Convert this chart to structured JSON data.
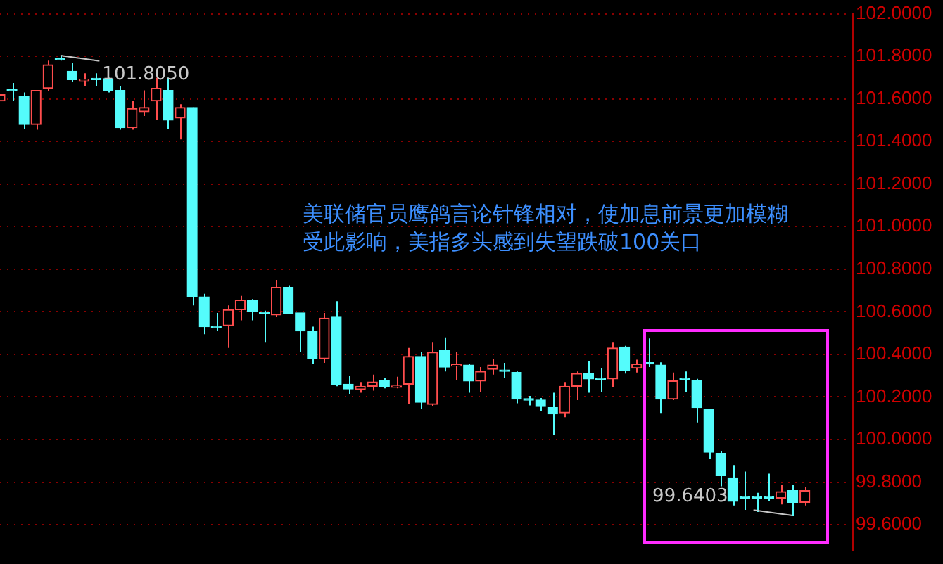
{
  "chart_data": {
    "type": "candlestick",
    "categories": [
      null,
      null,
      null,
      null,
      null,
      null,
      null,
      null,
      null,
      null,
      null,
      null,
      null,
      null,
      null,
      null,
      null,
      null,
      null,
      null,
      null,
      null,
      null,
      null,
      null,
      null,
      null,
      null,
      null,
      null,
      null,
      null,
      null,
      null,
      null,
      null,
      null,
      null,
      null,
      null,
      null,
      null,
      null,
      null,
      null,
      null,
      null,
      null,
      null,
      null,
      null,
      null,
      null,
      null,
      null,
      null,
      null,
      null,
      null,
      null,
      null,
      null,
      null,
      null,
      null,
      null,
      null,
      null,
      null,
      null,
      null,
      null
    ],
    "ohlc": [
      [
        101.59,
        101.62,
        101.59,
        101.62
      ],
      [
        101.645,
        101.675,
        101.59,
        101.64
      ],
      [
        101.61,
        101.63,
        101.46,
        101.48
      ],
      [
        101.48,
        101.64,
        101.455,
        101.64
      ],
      [
        101.65,
        101.78,
        101.635,
        101.76
      ],
      [
        101.79,
        101.805,
        101.78,
        101.785
      ],
      [
        101.73,
        101.77,
        101.68,
        101.69
      ],
      [
        101.685,
        101.72,
        101.66,
        101.69
      ],
      [
        101.695,
        101.72,
        101.66,
        101.69
      ],
      [
        101.695,
        101.7,
        101.63,
        101.64
      ],
      [
        101.64,
        101.66,
        101.455,
        101.465
      ],
      [
        101.465,
        101.59,
        101.455,
        101.555
      ],
      [
        101.54,
        101.64,
        101.52,
        101.56
      ],
      [
        101.59,
        101.7,
        101.5,
        101.65
      ],
      [
        101.64,
        101.7,
        101.46,
        101.5
      ],
      [
        101.51,
        101.575,
        101.41,
        101.56
      ],
      [
        101.56,
        101.56,
        100.63,
        100.67
      ],
      [
        100.67,
        100.685,
        100.495,
        100.53
      ],
      [
        100.53,
        100.595,
        100.51,
        100.525
      ],
      [
        100.535,
        100.63,
        100.43,
        100.61
      ],
      [
        100.61,
        100.675,
        100.56,
        100.655
      ],
      [
        100.655,
        100.66,
        100.56,
        100.6
      ],
      [
        100.595,
        100.605,
        100.455,
        100.59
      ],
      [
        100.585,
        100.75,
        100.575,
        100.715
      ],
      [
        100.715,
        100.725,
        100.59,
        100.59
      ],
      [
        100.595,
        100.595,
        100.41,
        100.51
      ],
      [
        100.51,
        100.53,
        100.355,
        100.38
      ],
      [
        100.38,
        100.595,
        100.36,
        100.57
      ],
      [
        100.575,
        100.65,
        100.25,
        100.26
      ],
      [
        100.26,
        100.3,
        100.215,
        100.2375
      ],
      [
        100.235,
        100.27,
        100.22,
        100.25
      ],
      [
        100.25,
        100.305,
        100.23,
        100.27
      ],
      [
        100.275,
        100.29,
        100.24,
        100.25
      ],
      [
        100.245,
        100.295,
        100.24,
        100.25
      ],
      [
        100.26,
        100.43,
        100.165,
        100.39
      ],
      [
        100.39,
        100.41,
        100.145,
        100.175
      ],
      [
        100.165,
        100.455,
        100.155,
        100.41
      ],
      [
        100.42,
        100.48,
        100.32,
        100.34
      ],
      [
        100.345,
        100.41,
        100.28,
        100.35
      ],
      [
        100.35,
        100.355,
        100.22,
        100.275
      ],
      [
        100.275,
        100.34,
        100.225,
        100.32
      ],
      [
        100.33,
        100.38,
        100.305,
        100.35
      ],
      [
        100.325,
        100.36,
        100.29,
        100.32
      ],
      [
        100.315,
        100.32,
        100.17,
        100.19
      ],
      [
        100.19,
        100.205,
        100.16,
        100.185
      ],
      [
        100.185,
        100.195,
        100.135,
        100.155
      ],
      [
        100.15,
        100.22,
        100.02,
        100.12
      ],
      [
        100.125,
        100.27,
        100.105,
        100.25
      ],
      [
        100.25,
        100.32,
        100.185,
        100.31
      ],
      [
        100.31,
        100.37,
        100.22,
        100.285
      ],
      [
        100.285,
        100.335,
        100.225,
        100.28
      ],
      [
        100.285,
        100.455,
        100.245,
        100.43
      ],
      [
        100.435,
        100.44,
        100.31,
        100.325
      ],
      [
        100.335,
        100.375,
        100.315,
        100.355
      ],
      [
        100.36,
        100.475,
        100.34,
        100.355
      ],
      [
        100.35,
        100.3625,
        100.125,
        100.19
      ],
      [
        100.19,
        100.315,
        100.185,
        100.275
      ],
      [
        100.285,
        100.32,
        100.225,
        100.28
      ],
      [
        100.275,
        100.285,
        100.08,
        100.15
      ],
      [
        100.14,
        100.14,
        99.91,
        99.94
      ],
      [
        99.935,
        99.945,
        99.78,
        99.83
      ],
      [
        99.82,
        99.88,
        99.69,
        99.71
      ],
      [
        99.73,
        99.85,
        99.67,
        99.725
      ],
      [
        99.73,
        99.75,
        99.66,
        99.725
      ],
      [
        99.73,
        99.84,
        99.71,
        99.725
      ],
      [
        99.725,
        99.785,
        99.695,
        99.755
      ],
      [
        99.76,
        99.785,
        99.6403,
        99.705
      ],
      [
        99.705,
        99.775,
        99.69,
        99.76
      ],
      null,
      null,
      null,
      null
    ],
    "colors": [
      "#ff4d4d",
      "#54fcfc",
      "#54fcfc",
      "#ff4d4d",
      "#ff4d4d",
      "#54fcfc",
      "#54fcfc",
      "#ff4d4d",
      "#54fcfc",
      "#54fcfc",
      "#54fcfc",
      "#ff4d4d",
      "#ff4d4d",
      "#ff4d4d",
      "#54fcfc",
      "#ff4d4d",
      "#54fcfc",
      "#54fcfc",
      "#54fcfc",
      "#ff4d4d",
      "#ff4d4d",
      "#54fcfc",
      "#54fcfc",
      "#ff4d4d",
      "#54fcfc",
      "#54fcfc",
      "#54fcfc",
      "#ff4d4d",
      "#54fcfc",
      "#54fcfc",
      "#ff4d4d",
      "#ff4d4d",
      "#54fcfc",
      "#ff4d4d",
      "#ff4d4d",
      "#54fcfc",
      "#ff4d4d",
      "#54fcfc",
      "#ff4d4d",
      "#54fcfc",
      "#ff4d4d",
      "#ff4d4d",
      "#54fcfc",
      "#54fcfc",
      "#54fcfc",
      "#54fcfc",
      "#54fcfc",
      "#ff4d4d",
      "#ff4d4d",
      "#54fcfc",
      "#54fcfc",
      "#ff4d4d",
      "#54fcfc",
      "#ff4d4d",
      "#54fcfc",
      "#54fcfc",
      "#ff4d4d",
      "#54fcfc",
      "#54fcfc",
      "#54fcfc",
      "#54fcfc",
      "#54fcfc",
      "#54fcfc",
      "#54fcfc",
      "#54fcfc",
      "#ff4d4d",
      "#54fcfc",
      "#ff4d4d",
      null,
      null,
      null,
      null
    ],
    "ylim": [
      99.48,
      102.0
    ],
    "yticks": [
      {
        "value": 99.6,
        "label": "99.6000"
      },
      {
        "value": 99.8,
        "label": "99.8000"
      },
      {
        "value": 100.0,
        "label": "100.0000"
      },
      {
        "value": 100.2,
        "label": "100.2000"
      },
      {
        "value": 100.4,
        "label": "100.4000"
      },
      {
        "value": 100.6,
        "label": "100.6000"
      },
      {
        "value": 100.8,
        "label": "100.8000"
      },
      {
        "value": 101.0,
        "label": "101.0000"
      },
      {
        "value": 101.2,
        "label": "101.2000"
      },
      {
        "value": 101.4,
        "label": "101.4000"
      },
      {
        "value": 101.6,
        "label": "101.6000"
      },
      {
        "value": 101.8,
        "label": "101.8000"
      },
      {
        "value": 102.0,
        "label": "102.0000"
      }
    ],
    "grid": "y",
    "tick_labels": "y",
    "legend": false,
    "annotations": [
      "美联储官员鹰鸽言论针锋相对，使加息前景更加模糊",
      "受此影响，美指多头感到失望跌破100关口",
      "101.8050",
      "99.6403"
    ]
  }
}
